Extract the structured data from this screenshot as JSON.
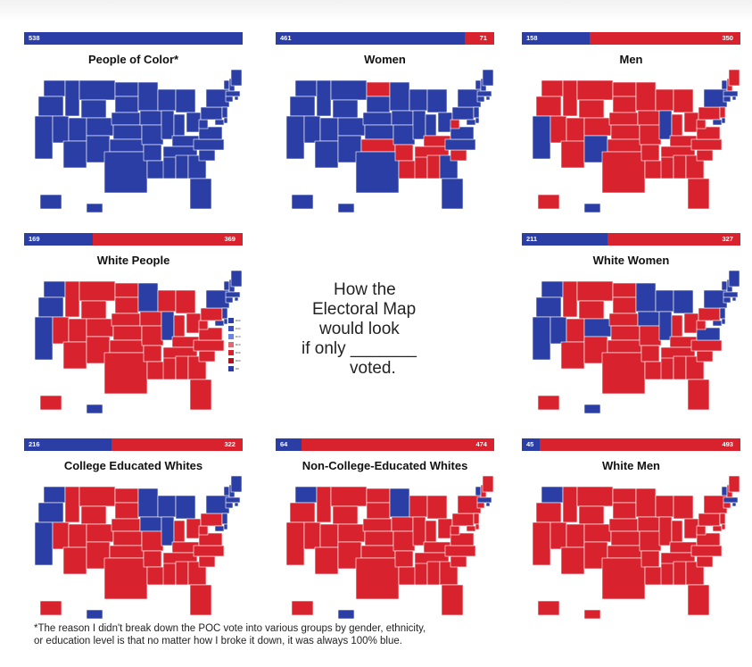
{
  "panels": [
    {
      "title": "People of Color*",
      "dem": 538,
      "rep": 0,
      "states": {
        "blue": [
          "ALL"
        ]
      }
    },
    {
      "title": "Women",
      "dem": 461,
      "rep": 71
    },
    {
      "title": "Men",
      "dem": 158,
      "rep": 350
    },
    {
      "title": "White People",
      "dem": 169,
      "rep": 369
    },
    {
      "title": "White Women",
      "dem": 211,
      "rep": 327
    },
    {
      "title": "College Educated Whites",
      "dem": 216,
      "rep": 322
    },
    {
      "title": "Non-College-Educated Whites",
      "dem": 64,
      "rep": 474
    },
    {
      "title": "White Men",
      "dem": 45,
      "rep": 493
    }
  ],
  "center": {
    "line1": "How the",
    "line2": "Electoral Map",
    "line3": "would look",
    "line4": "if only _______",
    "line5": "voted."
  },
  "legend_items": [
    "D60",
    "D30",
    "D10",
    "R10",
    "R30",
    "R60",
    "D5"
  ],
  "footnote": {
    "line1": "*The reason I didn't break down the POC vote into various groups by gender, ethnicity,",
    "line2": "or education level is that no matter how I broke it down, it was always 100% blue."
  },
  "colors": {
    "dem": "#2a3ea6",
    "rep": "#d8232f",
    "border": "#ffffff"
  }
}
